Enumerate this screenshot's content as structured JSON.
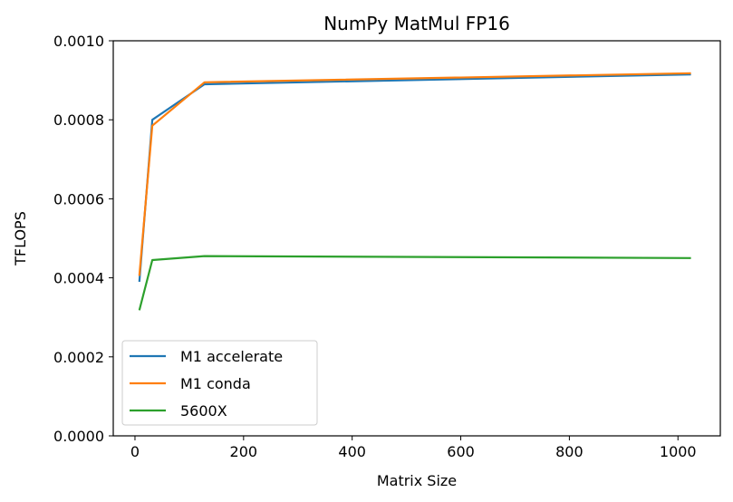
{
  "chart_data": {
    "type": "line",
    "title": "NumPy MatMul FP16",
    "xlabel": "Matrix Size",
    "ylabel": "TFLOPS",
    "xlim": [
      -40,
      1078
    ],
    "ylim": [
      0,
      0.001
    ],
    "xticks": [
      0,
      200,
      400,
      600,
      800,
      1000
    ],
    "xtick_labels": [
      "0",
      "200",
      "400",
      "600",
      "800",
      "1000"
    ],
    "yticks": [
      0,
      0.0002,
      0.0004,
      0.0006,
      0.0008,
      0.001
    ],
    "ytick_labels": [
      "0.0000",
      "0.0002",
      "0.0004",
      "0.0006",
      "0.0008",
      "0.0010"
    ],
    "grid": false,
    "legend_position": "lower-left",
    "series": [
      {
        "name": "M1 accelerate",
        "color": "#1f77b4",
        "x": [
          8,
          32,
          128,
          1024
        ],
        "y": [
          0.00039,
          0.0008,
          0.00089,
          0.000915
        ]
      },
      {
        "name": "M1 conda",
        "color": "#ff7f0e",
        "x": [
          8,
          32,
          128,
          1024
        ],
        "y": [
          0.000405,
          0.000785,
          0.000895,
          0.000918
        ]
      },
      {
        "name": "5600X",
        "color": "#2ca02c",
        "x": [
          8,
          32,
          128,
          1024
        ],
        "y": [
          0.000318,
          0.000445,
          0.000455,
          0.00045
        ]
      }
    ]
  }
}
